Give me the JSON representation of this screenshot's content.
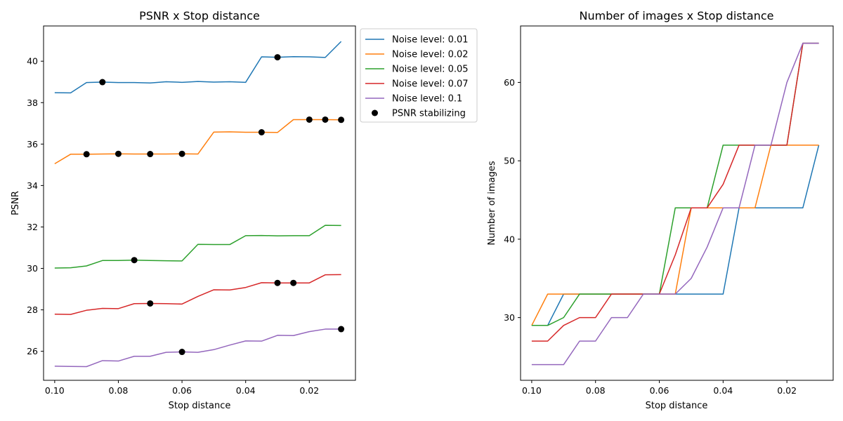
{
  "chart_data": [
    {
      "type": "line",
      "title": "PSNR x Stop distance",
      "xlabel": "Stop distance",
      "ylabel": "PSNR",
      "x_inverted": true,
      "xlim": [
        0.1035,
        0.0055
      ],
      "ylim": [
        24.6,
        41.7
      ],
      "xticks": [
        0.1,
        0.08,
        0.06,
        0.04,
        0.02
      ],
      "xtick_labels": [
        "0.10",
        "0.08",
        "0.06",
        "0.04",
        "0.02"
      ],
      "yticks": [
        26,
        28,
        30,
        32,
        34,
        36,
        38,
        40
      ],
      "ytick_labels": [
        "26",
        "28",
        "30",
        "32",
        "34",
        "36",
        "38",
        "40"
      ],
      "x": [
        0.1,
        0.095,
        0.09,
        0.085,
        0.08,
        0.075,
        0.07,
        0.065,
        0.06,
        0.055,
        0.05,
        0.045,
        0.04,
        0.035,
        0.03,
        0.025,
        0.02,
        0.015,
        0.01
      ],
      "legend_placement": "outside upper right",
      "series": [
        {
          "name": "Noise level: 0.01",
          "color": "#1f77b4",
          "values": [
            38.48,
            38.47,
            38.97,
            38.99,
            38.97,
            38.97,
            38.95,
            39.01,
            38.98,
            39.02,
            38.99,
            39.01,
            38.98,
            40.21,
            40.19,
            40.22,
            40.21,
            40.18,
            40.95
          ]
        },
        {
          "name": "Noise level: 0.02",
          "color": "#ff7f0e",
          "values": [
            35.05,
            35.51,
            35.51,
            35.52,
            35.53,
            35.52,
            35.52,
            35.52,
            35.53,
            35.52,
            36.58,
            36.59,
            36.57,
            36.57,
            36.56,
            37.18,
            37.18,
            37.18,
            37.17
          ]
        },
        {
          "name": "Noise level: 0.05",
          "color": "#2ca02c",
          "values": [
            30.02,
            30.03,
            30.12,
            30.38,
            30.38,
            30.4,
            30.38,
            30.37,
            30.36,
            31.16,
            31.15,
            31.15,
            31.58,
            31.59,
            31.57,
            31.58,
            31.58,
            32.08,
            32.07
          ]
        },
        {
          "name": "Noise level: 0.07",
          "color": "#d62728",
          "values": [
            27.79,
            27.78,
            27.98,
            28.07,
            28.06,
            28.3,
            28.31,
            28.3,
            28.28,
            28.65,
            28.97,
            28.96,
            29.08,
            29.31,
            29.3,
            29.3,
            29.3,
            29.69,
            29.7
          ]
        },
        {
          "name": "Noise level: 0.1",
          "color": "#9467bd",
          "values": [
            25.28,
            25.27,
            25.26,
            25.55,
            25.53,
            25.76,
            25.76,
            25.95,
            25.97,
            25.95,
            26.08,
            26.3,
            26.5,
            26.49,
            26.77,
            26.76,
            26.95,
            27.07,
            27.07
          ]
        }
      ],
      "scatter": {
        "name": "PSNR stabilizing",
        "color": "#000000",
        "points": [
          {
            "x": 0.085,
            "y": 38.99
          },
          {
            "x": 0.03,
            "y": 40.19
          },
          {
            "x": 0.09,
            "y": 35.51
          },
          {
            "x": 0.08,
            "y": 35.53
          },
          {
            "x": 0.07,
            "y": 35.52
          },
          {
            "x": 0.06,
            "y": 35.53
          },
          {
            "x": 0.035,
            "y": 36.57
          },
          {
            "x": 0.02,
            "y": 37.18
          },
          {
            "x": 0.015,
            "y": 37.18
          },
          {
            "x": 0.01,
            "y": 37.17
          },
          {
            "x": 0.075,
            "y": 30.4
          },
          {
            "x": 0.07,
            "y": 28.31
          },
          {
            "x": 0.03,
            "y": 29.3
          },
          {
            "x": 0.025,
            "y": 29.3
          },
          {
            "x": 0.06,
            "y": 25.97
          },
          {
            "x": 0.01,
            "y": 27.07
          }
        ]
      }
    },
    {
      "type": "line",
      "title": "Number of images x Stop distance",
      "xlabel": "Stop distance",
      "ylabel": "Number of images",
      "x_inverted": true,
      "xlim": [
        0.1035,
        0.0055
      ],
      "ylim": [
        22,
        67.2
      ],
      "xticks": [
        0.1,
        0.08,
        0.06,
        0.04,
        0.02
      ],
      "xtick_labels": [
        "0.10",
        "0.08",
        "0.06",
        "0.04",
        "0.02"
      ],
      "yticks": [
        30,
        40,
        50,
        60
      ],
      "ytick_labels": [
        "30",
        "40",
        "50",
        "60"
      ],
      "x": [
        0.1,
        0.095,
        0.09,
        0.085,
        0.08,
        0.075,
        0.07,
        0.065,
        0.06,
        0.055,
        0.05,
        0.045,
        0.04,
        0.035,
        0.03,
        0.025,
        0.02,
        0.015,
        0.01
      ],
      "series": [
        {
          "name": "Noise level: 0.01",
          "color": "#1f77b4",
          "values": [
            29,
            29,
            33,
            33,
            33,
            33,
            33,
            33,
            33,
            33,
            33,
            33,
            33,
            44,
            44,
            44,
            44,
            44,
            52
          ]
        },
        {
          "name": "Noise level: 0.02",
          "color": "#ff7f0e",
          "values": [
            29,
            33,
            33,
            33,
            33,
            33,
            33,
            33,
            33,
            33,
            44,
            44,
            44,
            44,
            44,
            52,
            52,
            52,
            52
          ]
        },
        {
          "name": "Noise level: 0.05",
          "color": "#2ca02c",
          "values": [
            29,
            29,
            30,
            33,
            33,
            33,
            33,
            33,
            33,
            44,
            44,
            44,
            52,
            52,
            52,
            52,
            52,
            65,
            65
          ]
        },
        {
          "name": "Noise level: 0.07",
          "color": "#d62728",
          "values": [
            27,
            27,
            29,
            30,
            30,
            33,
            33,
            33,
            33,
            38,
            44,
            44,
            47,
            52,
            52,
            52,
            52,
            65,
            65
          ]
        },
        {
          "name": "Noise level: 0.1",
          "color": "#9467bd",
          "values": [
            24,
            24,
            24,
            27,
            27,
            30,
            30,
            33,
            33,
            33,
            35,
            39,
            44,
            44,
            52,
            52,
            60,
            65,
            65
          ]
        }
      ]
    }
  ]
}
